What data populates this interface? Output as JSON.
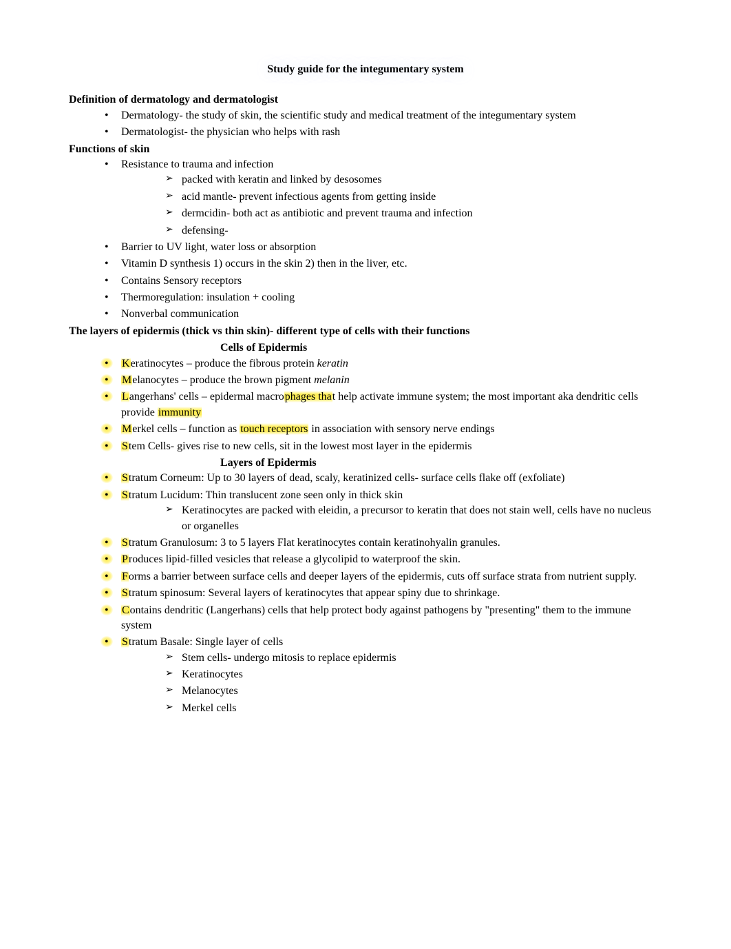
{
  "colors": {
    "background": "#ffffff",
    "text": "#000000",
    "highlight": "#ffeb3b"
  },
  "typography": {
    "font_family": "Times New Roman",
    "base_size_pt": 12,
    "title_size_pt": 12,
    "title_weight": "bold",
    "heading_weight": "bold"
  },
  "title": "Study guide for the integumentary system",
  "sections": {
    "definition": {
      "heading": "Definition of dermatology and dermatologist",
      "items": [
        "Dermatology- the study of skin, the scientific study and medical treatment of the integumentary system",
        "Dermatologist- the physician who helps with rash"
      ]
    },
    "functions": {
      "heading": "Functions of skin",
      "items": [
        {
          "text": "Resistance to trauma and infection",
          "sub": [
            "packed with keratin and linked by desosomes",
            "acid mantle- prevent infectious agents from getting inside",
            "dermcidin-       both act as antibiotic and prevent trauma and infection",
            "defensing-"
          ]
        },
        {
          "text": "Barrier to UV light, water loss or absorption"
        },
        {
          "text": "Vitamin D synthesis 1) occurs in the skin 2) then in the liver, etc."
        },
        {
          "text": "Contains Sensory receptors"
        },
        {
          "text": "Thermoregulation: insulation + cooling"
        },
        {
          "text": "Nonverbal communication"
        }
      ]
    },
    "layers": {
      "heading": "The layers of epidermis (thick vs thin skin)- different type of cells with their functions",
      "subhead1": "Cells of Epidermis",
      "cells": [
        {
          "pre": "K",
          "rest": "eratinocytes – produce the fibrous protein ",
          "italic": "keratin"
        },
        {
          "pre": "M",
          "rest": "elanocytes – produce the brown pigment ",
          "italic": "melanin"
        },
        {
          "pre": "L",
          "rest_a": "angerhans' cells – epidermal macro",
          "hl1": "phages tha",
          "rest_b": "t help activate immune system; the most important aka dendritic cells provide ",
          "hl2": "immunity"
        },
        {
          "pre": "M",
          "rest_a": "erkel cells – function as ",
          "hl1": "touch receptors",
          "rest_b": " in association with sensory nerve endings"
        },
        {
          "pre": "S",
          "rest": "tem Cells- gives rise to new cells, sit in the lowest most layer in the epidermis"
        }
      ],
      "subhead2": "Layers of Epidermis",
      "strata": [
        {
          "pre": "S",
          "rest": "tratum Corneum: Up to 30 layers of dead, scaly, keratinized cells- surface cells flake off (exfoliate)"
        },
        {
          "pre": "S",
          "rest": "tratum Lucidum: Thin translucent zone seen only in thick skin",
          "sub": [
            "Keratinocytes are packed with eleidin, a precursor to keratin that does not stain well, cells have no nucleus or organelles"
          ]
        },
        {
          "pre": "S",
          "rest": "tratum Granulosum: 3 to 5 layers Flat keratinocytes contain keratinohyalin granules."
        },
        {
          "pre": "P",
          "rest": "roduces lipid-filled vesicles that release a glycolipid to waterproof the skin."
        },
        {
          "pre": "F",
          "rest": "orms a barrier between surface cells and deeper layers of the epidermis, cuts off surface strata from nutrient supply."
        },
        {
          "pre": "S",
          "rest": "tratum spinosum: Several layers of keratinocytes that appear spiny due to shrinkage."
        },
        {
          "pre": "C",
          "rest": "ontains dendritic (Langerhans) cells that help protect body against pathogens by \"presenting\" them to the immune system"
        },
        {
          "pre": "S",
          "rest": "tratum Basale: Single layer of cells",
          "sub": [
            "Stem cells- undergo mitosis to replace epidermis",
            "Keratinocytes",
            "Melanocytes",
            "Merkel cells"
          ]
        }
      ]
    }
  }
}
